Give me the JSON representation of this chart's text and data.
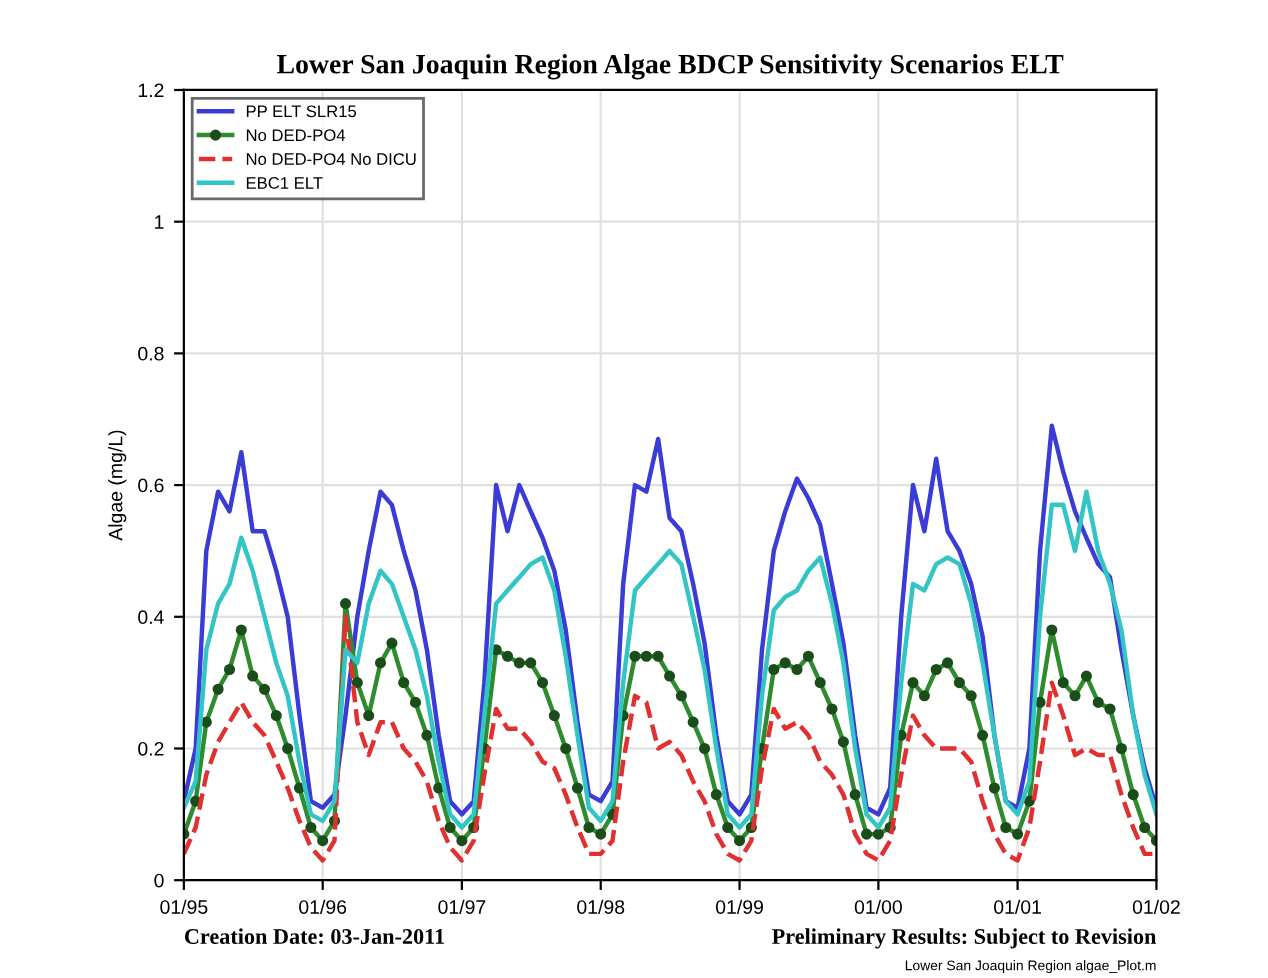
{
  "chart_data": {
    "type": "line",
    "title": "Lower San Joaquin Region Algae BDCP Sensitivity Scenarios ELT",
    "ylabel": "Algae (mg/L)",
    "x": [
      "1995-01",
      "1995-02",
      "1995-03",
      "1995-04",
      "1995-05",
      "1995-06",
      "1995-07",
      "1995-08",
      "1995-09",
      "1995-10",
      "1995-11",
      "1995-12",
      "1996-01",
      "1996-02",
      "1996-03",
      "1996-04",
      "1996-05",
      "1996-06",
      "1996-07",
      "1996-08",
      "1996-09",
      "1996-10",
      "1996-11",
      "1996-12",
      "1997-01",
      "1997-02",
      "1997-03",
      "1997-04",
      "1997-05",
      "1997-06",
      "1997-07",
      "1997-08",
      "1997-09",
      "1997-10",
      "1997-11",
      "1997-12",
      "1998-01",
      "1998-02",
      "1998-03",
      "1998-04",
      "1998-05",
      "1998-06",
      "1998-07",
      "1998-08",
      "1998-09",
      "1998-10",
      "1998-11",
      "1998-12",
      "1999-01",
      "1999-02",
      "1999-03",
      "1999-04",
      "1999-05",
      "1999-06",
      "1999-07",
      "1999-08",
      "1999-09",
      "1999-10",
      "1999-11",
      "1999-12",
      "2000-01",
      "2000-02",
      "2000-03",
      "2000-04",
      "2000-05",
      "2000-06",
      "2000-07",
      "2000-08",
      "2000-09",
      "2000-10",
      "2000-11",
      "2000-12",
      "2001-01",
      "2001-02",
      "2001-03",
      "2001-04",
      "2001-05",
      "2001-06",
      "2001-07",
      "2001-08",
      "2001-09",
      "2001-10",
      "2001-11",
      "2001-12",
      "2002-01"
    ],
    "series": [
      {
        "name": "PP ELT SLR15",
        "color": "#3b3bd6",
        "values": [
          0.12,
          0.2,
          0.5,
          0.59,
          0.56,
          0.65,
          0.53,
          0.53,
          0.47,
          0.4,
          0.25,
          0.12,
          0.11,
          0.13,
          0.25,
          0.4,
          0.5,
          0.59,
          0.57,
          0.5,
          0.44,
          0.35,
          0.22,
          0.12,
          0.1,
          0.12,
          0.3,
          0.6,
          0.53,
          0.6,
          0.56,
          0.52,
          0.47,
          0.38,
          0.24,
          0.13,
          0.12,
          0.15,
          0.45,
          0.6,
          0.59,
          0.67,
          0.55,
          0.53,
          0.45,
          0.36,
          0.22,
          0.12,
          0.1,
          0.13,
          0.35,
          0.5,
          0.56,
          0.61,
          0.58,
          0.54,
          0.45,
          0.36,
          0.22,
          0.11,
          0.1,
          0.14,
          0.4,
          0.6,
          0.53,
          0.64,
          0.53,
          0.5,
          0.45,
          0.37,
          0.22,
          0.12,
          0.11,
          0.2,
          0.5,
          0.69,
          0.62,
          0.56,
          0.52,
          0.48,
          0.46,
          0.35,
          0.25,
          0.17,
          0.11
        ]
      },
      {
        "name": "No DED-PO4",
        "color": "#2e8b2e",
        "marker": "circle",
        "values": [
          0.07,
          0.12,
          0.24,
          0.29,
          0.32,
          0.38,
          0.31,
          0.29,
          0.25,
          0.2,
          0.14,
          0.08,
          0.06,
          0.09,
          0.42,
          0.3,
          0.25,
          0.33,
          0.36,
          0.3,
          0.27,
          0.22,
          0.14,
          0.08,
          0.06,
          0.08,
          0.2,
          0.35,
          0.34,
          0.33,
          0.33,
          0.3,
          0.25,
          0.2,
          0.14,
          0.08,
          0.07,
          0.1,
          0.25,
          0.34,
          0.34,
          0.34,
          0.31,
          0.28,
          0.24,
          0.2,
          0.13,
          0.08,
          0.06,
          0.08,
          0.2,
          0.32,
          0.33,
          0.32,
          0.34,
          0.3,
          0.26,
          0.21,
          0.13,
          0.07,
          0.07,
          0.08,
          0.22,
          0.3,
          0.28,
          0.32,
          0.33,
          0.3,
          0.28,
          0.22,
          0.14,
          0.08,
          0.07,
          0.12,
          0.27,
          0.38,
          0.3,
          0.28,
          0.31,
          0.27,
          0.26,
          0.2,
          0.13,
          0.08,
          0.06
        ]
      },
      {
        "name": "No DED-PO4 No DICU",
        "color": "#e03030",
        "line_style": "dashed",
        "values": [
          0.04,
          0.08,
          0.16,
          0.21,
          0.24,
          0.27,
          0.24,
          0.22,
          0.18,
          0.14,
          0.09,
          0.05,
          0.03,
          0.06,
          0.4,
          0.24,
          0.19,
          0.24,
          0.24,
          0.2,
          0.18,
          0.15,
          0.09,
          0.05,
          0.03,
          0.06,
          0.16,
          0.26,
          0.23,
          0.23,
          0.21,
          0.18,
          0.17,
          0.13,
          0.08,
          0.04,
          0.04,
          0.06,
          0.18,
          0.28,
          0.27,
          0.2,
          0.21,
          0.19,
          0.15,
          0.12,
          0.07,
          0.04,
          0.03,
          0.06,
          0.17,
          0.26,
          0.23,
          0.24,
          0.22,
          0.18,
          0.16,
          0.13,
          0.07,
          0.04,
          0.03,
          0.06,
          0.16,
          0.25,
          0.22,
          0.2,
          0.2,
          0.2,
          0.18,
          0.12,
          0.07,
          0.04,
          0.03,
          0.08,
          0.18,
          0.3,
          0.25,
          0.19,
          0.2,
          0.19,
          0.19,
          0.13,
          0.08,
          0.04,
          0.04
        ]
      },
      {
        "name": "EBC1 ELT",
        "color": "#33c4c4",
        "values": [
          0.11,
          0.15,
          0.35,
          0.42,
          0.45,
          0.52,
          0.47,
          0.4,
          0.33,
          0.28,
          0.18,
          0.1,
          0.09,
          0.12,
          0.35,
          0.33,
          0.42,
          0.47,
          0.45,
          0.4,
          0.35,
          0.28,
          0.18,
          0.1,
          0.08,
          0.1,
          0.25,
          0.42,
          0.44,
          0.46,
          0.48,
          0.49,
          0.44,
          0.34,
          0.22,
          0.11,
          0.09,
          0.12,
          0.3,
          0.44,
          0.46,
          0.48,
          0.5,
          0.48,
          0.4,
          0.32,
          0.2,
          0.1,
          0.08,
          0.1,
          0.28,
          0.41,
          0.43,
          0.44,
          0.47,
          0.49,
          0.42,
          0.33,
          0.2,
          0.1,
          0.08,
          0.11,
          0.3,
          0.45,
          0.44,
          0.48,
          0.49,
          0.48,
          0.42,
          0.33,
          0.22,
          0.12,
          0.1,
          0.15,
          0.4,
          0.57,
          0.57,
          0.5,
          0.59,
          0.5,
          0.45,
          0.38,
          0.25,
          0.16,
          0.1
        ]
      }
    ],
    "xlim": [
      "1995-01",
      "2002-01"
    ],
    "xticks": [
      {
        "value": "1995-01",
        "label": "01/95"
      },
      {
        "value": "1996-01",
        "label": "01/96"
      },
      {
        "value": "1997-01",
        "label": "01/97"
      },
      {
        "value": "1998-01",
        "label": "01/98"
      },
      {
        "value": "1999-01",
        "label": "01/99"
      },
      {
        "value": "2000-01",
        "label": "01/00"
      },
      {
        "value": "2001-01",
        "label": "01/01"
      },
      {
        "value": "2002-01",
        "label": "01/02"
      }
    ],
    "ylim": [
      0,
      1.2
    ],
    "yticks": [
      0,
      0.2,
      0.4,
      0.6,
      0.8,
      1,
      1.2
    ],
    "grid": true,
    "legend": "top left",
    "annotations": [
      "Creation Date: 03-Jan-2011",
      "Preliminary Results: Subject to Revision",
      "Lower San Joaquin Region algae_Plot.m"
    ]
  }
}
